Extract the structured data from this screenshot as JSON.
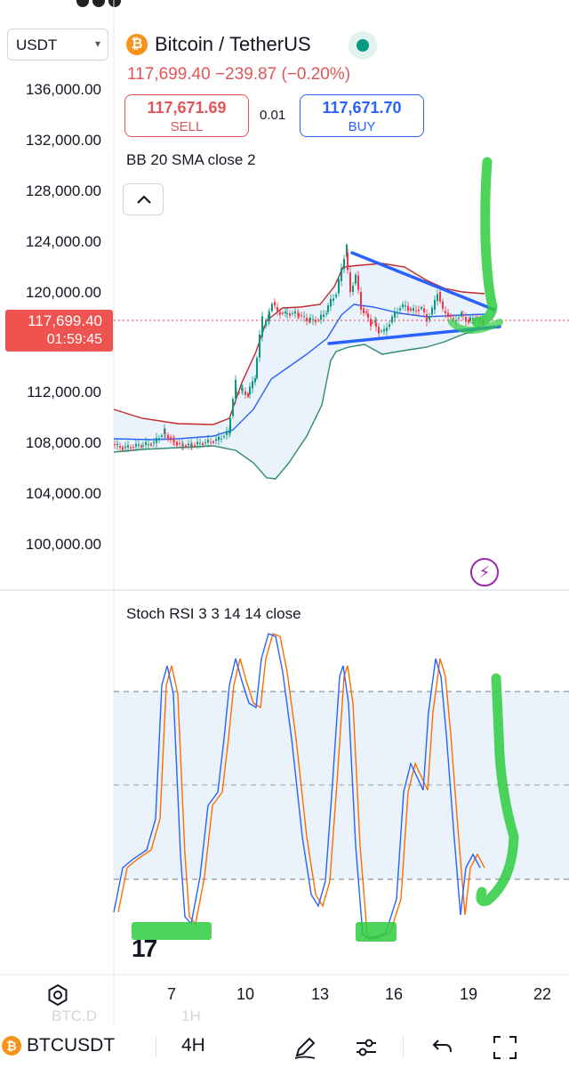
{
  "header": {
    "symbol_select": "USDT",
    "title": "Bitcoin / TetherUS",
    "price_change": "117,699.40 −239.87 (−0.20%)",
    "sell": {
      "price": "117,671.69",
      "label": "SELL"
    },
    "buy": {
      "price": "117,671.70",
      "label": "BUY"
    },
    "spread": "0.01"
  },
  "main_chart": {
    "indicator_legend": "BB 20 SMA close 2",
    "y_axis_labels": [
      "136,000.00",
      "132,000.00",
      "128,000.00",
      "124,000.00",
      "120,000.00",
      "112,000.00",
      "108,000.00",
      "104,000.00",
      "100,000.00"
    ],
    "current_price": "117,699.40",
    "countdown": "01:59:45"
  },
  "rsi_panel": {
    "indicator_legend": "Stoch RSI 3 3 14 14 close"
  },
  "x_axis_labels": [
    "7",
    "10",
    "13",
    "16",
    "19",
    "22"
  ],
  "ghost_labels": {
    "left": "BTC.D",
    "right": "1H"
  },
  "bottom_bar": {
    "symbol": "BTCUSDT",
    "interval": "4H"
  },
  "colors": {
    "up": "#089981",
    "down": "#f23645",
    "bb_upper": "#c62828",
    "bb_basis": "#2962ff",
    "bb_lower": "#2e8b6e",
    "bb_fill": "#eaf3fc",
    "trendline": "#2962ff",
    "annotation": "#2ecc40",
    "stoch_k": "#2962ff",
    "stoch_d": "#ff6d00"
  },
  "icons": [
    "chevron-down-icon",
    "bitcoin-icon",
    "chevron-up-icon",
    "flash-icon",
    "gear-icon",
    "pen-icon",
    "sliders-icon",
    "undo-icon",
    "fullscreen-icon"
  ]
}
